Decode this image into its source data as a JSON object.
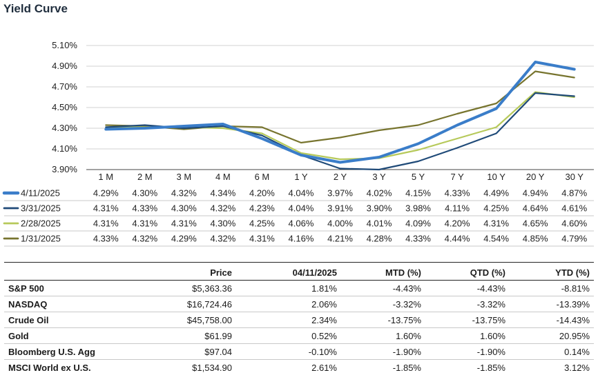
{
  "title": "Yield Curve",
  "chart_data": {
    "type": "line",
    "categories": [
      "1 M",
      "2 M",
      "3 M",
      "4 M",
      "6 M",
      "1 Y",
      "2 Y",
      "3 Y",
      "5 Y",
      "7 Y",
      "10 Y",
      "20 Y",
      "30 Y"
    ],
    "y_ticks": [
      "5.10%",
      "4.90%",
      "4.70%",
      "4.50%",
      "4.30%",
      "4.10%",
      "3.90%"
    ],
    "ylim": [
      3.9,
      5.1
    ],
    "series": [
      {
        "name": "4/11/2025",
        "color": "#3a7dc9",
        "width": 4,
        "values": [
          4.29,
          4.3,
          4.32,
          4.34,
          4.2,
          4.04,
          3.97,
          4.02,
          4.15,
          4.33,
          4.49,
          4.94,
          4.87
        ],
        "labels": [
          "4.29%",
          "4.30%",
          "4.32%",
          "4.34%",
          "4.20%",
          "4.04%",
          "3.97%",
          "4.02%",
          "4.15%",
          "4.33%",
          "4.49%",
          "4.94%",
          "4.87%"
        ]
      },
      {
        "name": "3/31/2025",
        "color": "#1f4a78",
        "width": 2.2,
        "values": [
          4.31,
          4.33,
          4.3,
          4.32,
          4.23,
          4.04,
          3.91,
          3.9,
          3.98,
          4.11,
          4.25,
          4.64,
          4.61
        ],
        "labels": [
          "4.31%",
          "4.33%",
          "4.30%",
          "4.32%",
          "4.23%",
          "4.04%",
          "3.91%",
          "3.90%",
          "3.98%",
          "4.11%",
          "4.25%",
          "4.64%",
          "4.61%"
        ]
      },
      {
        "name": "2/28/2025",
        "color": "#b6c95a",
        "width": 2.2,
        "values": [
          4.31,
          4.31,
          4.31,
          4.3,
          4.25,
          4.06,
          4.0,
          4.01,
          4.09,
          4.2,
          4.31,
          4.65,
          4.6
        ],
        "labels": [
          "4.31%",
          "4.31%",
          "4.31%",
          "4.30%",
          "4.25%",
          "4.06%",
          "4.00%",
          "4.01%",
          "4.09%",
          "4.20%",
          "4.31%",
          "4.65%",
          "4.60%"
        ]
      },
      {
        "name": "1/31/2025",
        "color": "#77742e",
        "width": 2.2,
        "values": [
          4.33,
          4.32,
          4.29,
          4.32,
          4.31,
          4.16,
          4.21,
          4.28,
          4.33,
          4.44,
          4.54,
          4.85,
          4.79
        ],
        "labels": [
          "4.33%",
          "4.32%",
          "4.29%",
          "4.32%",
          "4.31%",
          "4.16%",
          "4.21%",
          "4.28%",
          "4.33%",
          "4.44%",
          "4.54%",
          "4.85%",
          "4.79%"
        ]
      }
    ]
  },
  "table": {
    "headers": [
      "",
      "Price",
      "04/11/2025",
      "MTD (%)",
      "QTD (%)",
      "YTD (%)"
    ],
    "rows": [
      [
        "S&P 500",
        "$5,363.36",
        "1.81%",
        "-4.43%",
        "-4.43%",
        "-8.81%"
      ],
      [
        "NASDAQ",
        "$16,724.46",
        "2.06%",
        "-3.32%",
        "-3.32%",
        "-13.39%"
      ],
      [
        "Crude Oil",
        "$45,758.00",
        "2.34%",
        "-13.75%",
        "-13.75%",
        "-14.43%"
      ],
      [
        "Gold",
        "$61.99",
        "0.52%",
        "1.60%",
        "1.60%",
        "20.95%"
      ],
      [
        "Bloomberg U.S. Agg",
        "$97.04",
        "-0.10%",
        "-1.90%",
        "-1.90%",
        "0.14%"
      ],
      [
        "MSCI World ex U.S.",
        "$1,534.90",
        "2.61%",
        "-1.85%",
        "-1.85%",
        "3.12%"
      ]
    ]
  }
}
